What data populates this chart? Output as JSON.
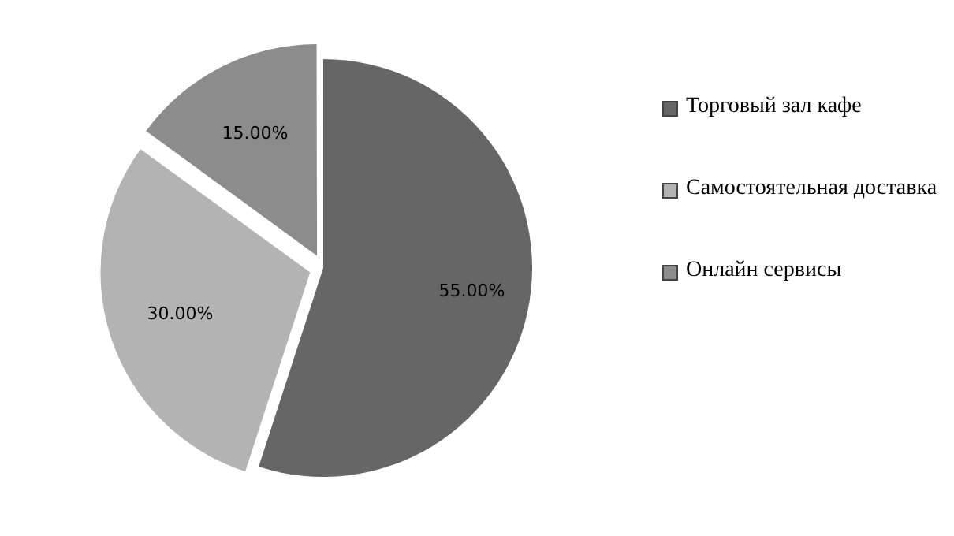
{
  "chart_data": {
    "type": "pie",
    "categories": [
      "Торговый зал кафе",
      "Самостоятельная доставка",
      "Онлайн сервисы"
    ],
    "values": [
      55,
      30,
      15
    ],
    "colors": [
      "#666666",
      "#b3b3b3",
      "#8c8c8c"
    ],
    "value_labels": [
      "55.00%",
      "30.00%",
      "15.00%"
    ],
    "legend": "right"
  }
}
